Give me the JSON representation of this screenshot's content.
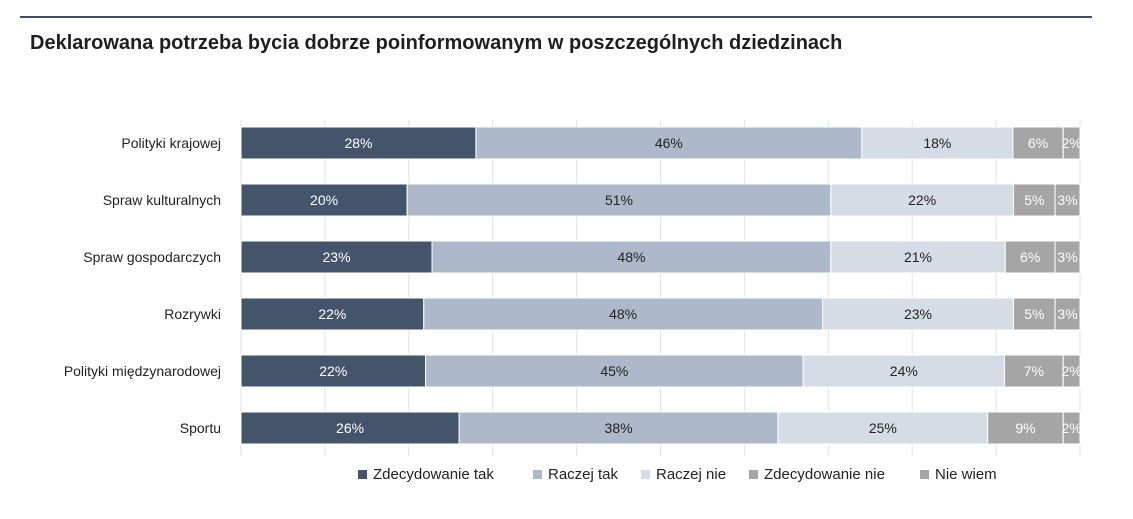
{
  "chart_data": {
    "type": "bar",
    "orientation": "horizontal",
    "stacked": "percent",
    "title": "Deklarowana potrzeba bycia dobrze poinformowanym w poszczególnych dziedzinach",
    "categories": [
      "Polityki krajowej",
      "Spraw kulturalnych",
      "Spraw gospodarczych",
      "Rozrywki",
      "Polityki międzynarodowej",
      "Sportu"
    ],
    "series": [
      {
        "name": "Zdecydowanie tak",
        "color": "#44546a",
        "label_color": "#ffffff",
        "values": [
          28,
          20,
          23,
          22,
          22,
          26
        ]
      },
      {
        "name": "Raczej tak",
        "color": "#adb9ca",
        "label_color": "#222222",
        "values": [
          46,
          51,
          48,
          48,
          45,
          38
        ]
      },
      {
        "name": "Raczej nie",
        "color": "#d6dce5",
        "label_color": "#222222",
        "values": [
          18,
          22,
          21,
          23,
          24,
          25
        ]
      },
      {
        "name": "Zdecydowanie nie",
        "color": "#a5a5a5",
        "label_color": "#ffffff",
        "values": [
          6,
          5,
          6,
          5,
          7,
          9
        ]
      },
      {
        "name": "Nie wiem",
        "color": "#a5a5a5",
        "label_color": "#ffffff",
        "values": [
          2,
          3,
          3,
          3,
          2,
          2
        ]
      }
    ],
    "value_suffix": "%",
    "xlim": [
      0,
      100
    ],
    "legend_position": "bottom"
  }
}
